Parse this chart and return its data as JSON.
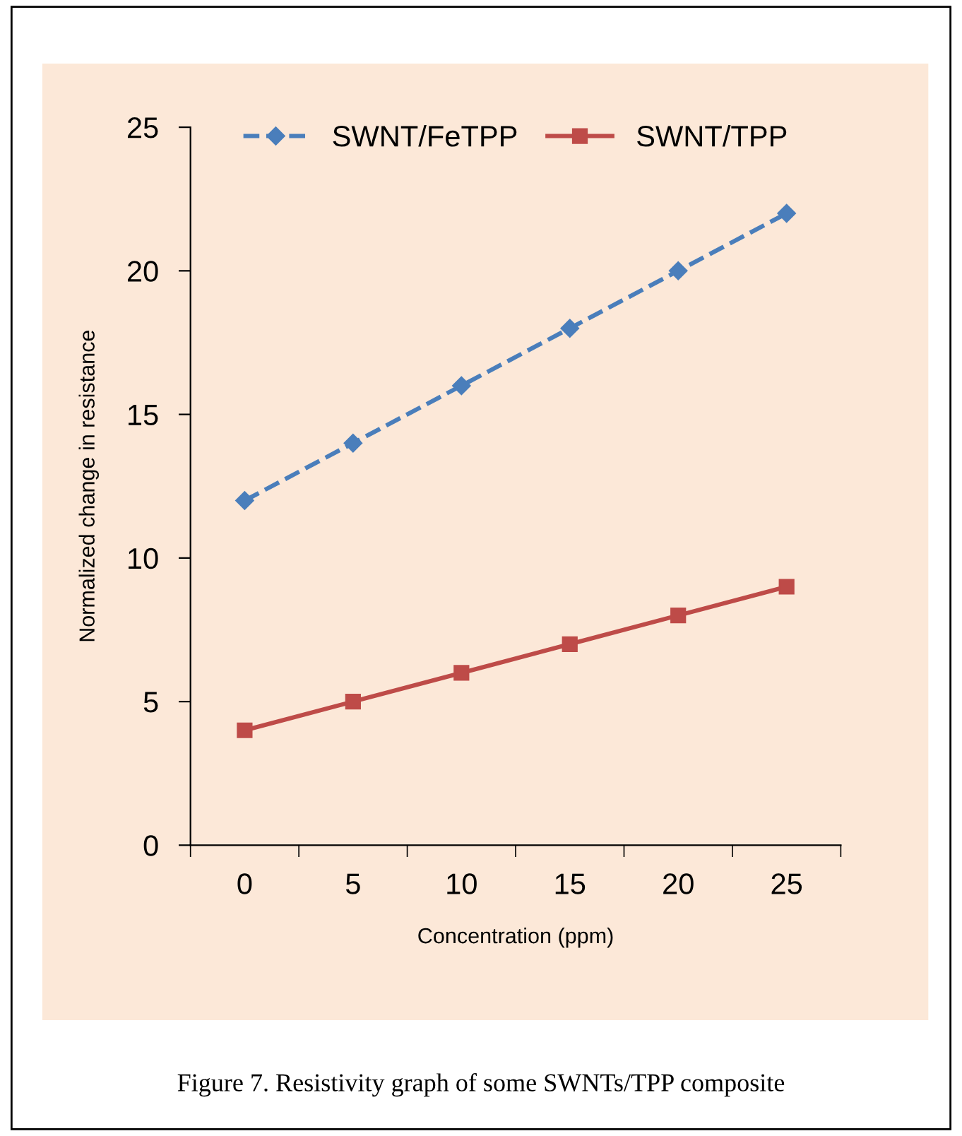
{
  "chart_data": {
    "type": "line",
    "xlabel": "Concentration (ppm)",
    "ylabel": "Normalized change in resistance",
    "categories": [
      "0",
      "5",
      "10",
      "15",
      "20",
      "25"
    ],
    "series": [
      {
        "name": "SWNT/FeTPP",
        "color": "#4a7ebb",
        "values": [
          12,
          14,
          16,
          18,
          20,
          22
        ],
        "marker": "diamond",
        "line_style": "dashed"
      },
      {
        "name": "SWNT/TPP",
        "color": "#be4b48",
        "values": [
          4,
          5,
          6,
          7,
          8,
          9
        ],
        "marker": "square",
        "line_style": "solid"
      }
    ],
    "ylim": [
      0,
      25
    ],
    "yticks": [
      0,
      5,
      10,
      15,
      20,
      25
    ],
    "grid": false,
    "legend": "top",
    "annotations": [
      "Figure 7. Resistivity graph of some SWNTs/TPP composite"
    ]
  }
}
